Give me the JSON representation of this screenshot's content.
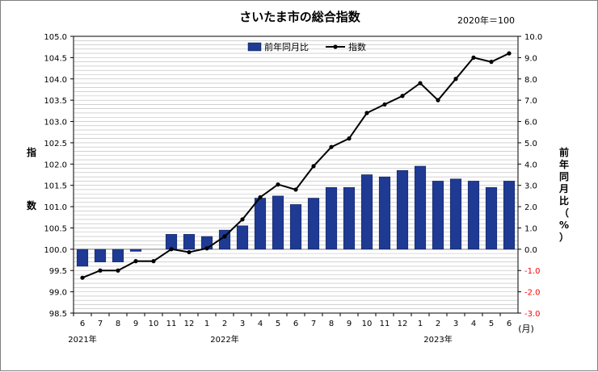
{
  "chart_data": {
    "type": "bar",
    "title": "さいたま市の総合指数",
    "base_note": "2020年＝100",
    "categories": [
      "6",
      "7",
      "8",
      "9",
      "10",
      "11",
      "12",
      "1",
      "2",
      "3",
      "4",
      "5",
      "6",
      "7",
      "8",
      "9",
      "10",
      "11",
      "12",
      "1",
      "2",
      "3",
      "4",
      "5",
      "6"
    ],
    "month_unit": "(月)",
    "year_labels": [
      {
        "label": "2021年",
        "at_index": 0
      },
      {
        "label": "2022年",
        "at_index": 8
      },
      {
        "label": "2023年",
        "at_index": 20
      }
    ],
    "left_axis": {
      "label_chars": [
        "指",
        "数"
      ],
      "ylim": [
        98.5,
        105.0
      ],
      "step": 0.5
    },
    "right_axis": {
      "label_chars": [
        "前",
        "年",
        "同",
        "月",
        "比",
        "（",
        "%",
        "）"
      ],
      "ylim": [
        -3.0,
        10.0
      ],
      "step": 1.0,
      "negative_color": "#ff0000"
    },
    "legend": {
      "position": "top-center"
    },
    "grid": true,
    "series": [
      {
        "name": "前年同月比",
        "type": "bar",
        "axis": "right",
        "color": "#1f3a93",
        "values": [
          -0.8,
          -0.6,
          -0.6,
          -0.1,
          0.0,
          0.7,
          0.7,
          0.6,
          0.9,
          1.1,
          2.4,
          2.5,
          2.1,
          2.4,
          2.9,
          2.9,
          3.5,
          3.4,
          3.7,
          3.9,
          3.2,
          3.3,
          3.2,
          2.9,
          3.2
        ]
      },
      {
        "name": "指数",
        "type": "line",
        "axis": "left",
        "color": "#000000",
        "values": [
          99.33,
          99.5,
          99.5,
          99.72,
          99.72,
          100.0,
          99.93,
          100.02,
          100.3,
          100.7,
          101.22,
          101.52,
          101.4,
          101.95,
          102.4,
          102.6,
          103.2,
          103.4,
          103.6,
          103.9,
          103.5,
          104.0,
          104.5,
          104.4,
          104.6
        ]
      }
    ]
  }
}
